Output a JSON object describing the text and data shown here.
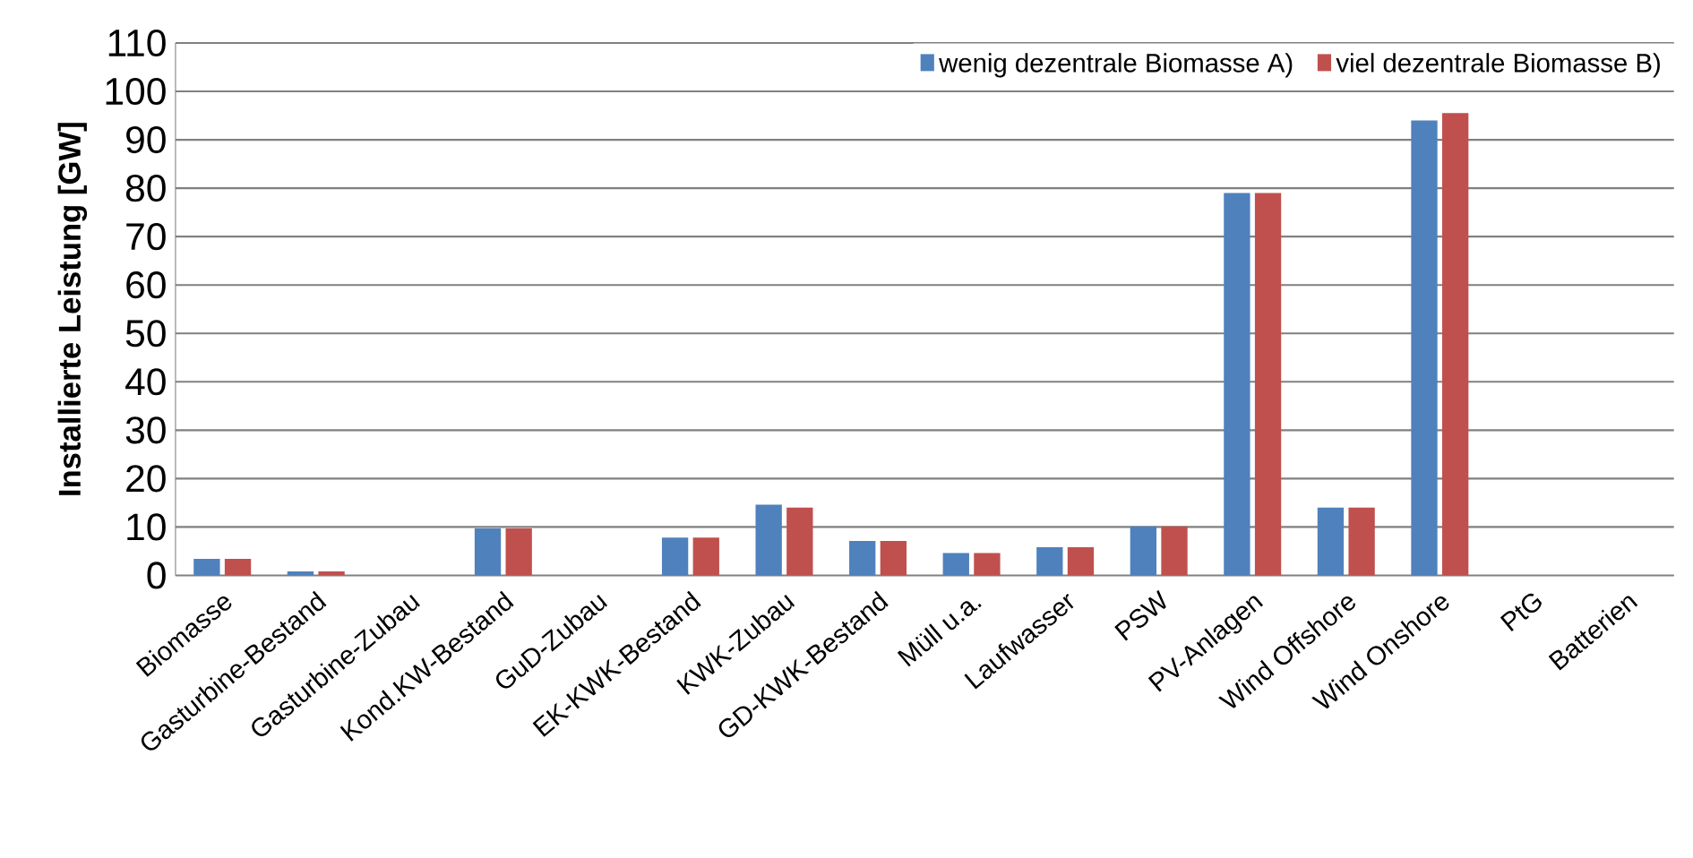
{
  "chart_data": {
    "type": "bar",
    "ylabel": "Installierte Leistung [GW]",
    "categories": [
      "Biomasse",
      "Gasturbine-Bestand",
      "Gasturbine-Zubau",
      "Kond.KW-Bestand",
      "GuD-Zubau",
      "EK-KWK-Bestand",
      "KWK-Zubau",
      "GD-KWK-Bestand",
      "Müll u.a.",
      "Laufwasser",
      "PSW",
      "PV-Anlagen",
      "Wind Offshore",
      "Wind Onshore",
      "PtG",
      "Batterien"
    ],
    "series": [
      {
        "name": "wenig dezentrale Biomasse A)",
        "color": "#4f81bd",
        "values": [
          3.4,
          0.8,
          0,
          9.7,
          0,
          7.8,
          14.6,
          7.1,
          4.6,
          5.8,
          10.1,
          79,
          14,
          94,
          0,
          0
        ]
      },
      {
        "name": "viel dezentrale Biomasse B)",
        "color": "#c0504d",
        "values": [
          3.4,
          0.8,
          0,
          9.7,
          0,
          7.8,
          14,
          7.1,
          4.6,
          5.8,
          10.1,
          79,
          14,
          95.5,
          0,
          0
        ]
      }
    ],
    "ylim": [
      0,
      110
    ],
    "yticks": [
      0,
      10,
      20,
      30,
      40,
      50,
      60,
      70,
      80,
      90,
      100,
      110
    ],
    "grid": "y",
    "legend": "top right"
  }
}
